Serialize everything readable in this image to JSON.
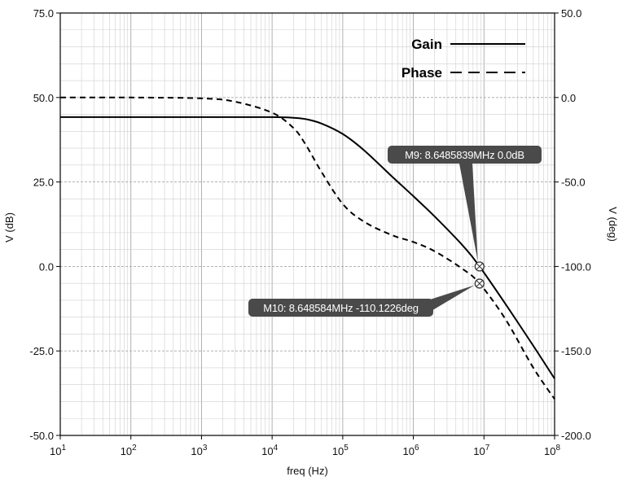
{
  "chart_data": {
    "type": "line",
    "xlabel": "freq (Hz)",
    "ylabel_left": "V (dB)",
    "ylabel_right": "V (deg)",
    "xscale": "log",
    "xlim": [
      10,
      100000000
    ],
    "ylim_left": [
      -50,
      75
    ],
    "ylim_right": [
      -200,
      50
    ],
    "x_ticks": [
      {
        "mant": "10",
        "exp": "1",
        "value": 10
      },
      {
        "mant": "10",
        "exp": "2",
        "value": 100
      },
      {
        "mant": "10",
        "exp": "3",
        "value": 1000
      },
      {
        "mant": "10",
        "exp": "4",
        "value": 10000
      },
      {
        "mant": "10",
        "exp": "5",
        "value": 100000
      },
      {
        "mant": "10",
        "exp": "6",
        "value": 1000000
      },
      {
        "mant": "10",
        "exp": "7",
        "value": 10000000
      },
      {
        "mant": "10",
        "exp": "8",
        "value": 100000000
      }
    ],
    "y_left_ticks": [
      {
        "label": "75.0",
        "value": 75
      },
      {
        "label": "50.0",
        "value": 50
      },
      {
        "label": "25.0",
        "value": 25
      },
      {
        "label": "0.0",
        "value": 0
      },
      {
        "label": "-25.0",
        "value": -25
      },
      {
        "label": "-50.0",
        "value": -50
      }
    ],
    "y_right_ticks": [
      {
        "label": "50.0",
        "value": 50
      },
      {
        "label": "0.0",
        "value": 0
      },
      {
        "label": "-50.0",
        "value": -50
      },
      {
        "label": "-100.0",
        "value": -100
      },
      {
        "label": "-150.0",
        "value": -150
      },
      {
        "label": "-200.0",
        "value": -200
      }
    ],
    "grid": true,
    "legend_position": "top-right",
    "series": [
      {
        "name": "Gain",
        "axis": "left",
        "style": "solid",
        "x": [
          10,
          100,
          1000,
          10000,
          20000,
          30000,
          50000,
          100000,
          200000,
          500000,
          1000000,
          2000000,
          5000000,
          8648584,
          20000000,
          50000000,
          100000000
        ],
        "y": [
          44.2,
          44.2,
          44.2,
          44.2,
          44.0,
          43.6,
          42.3,
          39.2,
          34.4,
          26.6,
          20.8,
          14.8,
          6.2,
          0.0,
          -11.0,
          -23.5,
          -33.2
        ]
      },
      {
        "name": "Phase",
        "axis": "right",
        "style": "dashed",
        "x": [
          10,
          100,
          1000,
          3000,
          10000,
          20000,
          30000,
          50000,
          100000,
          200000,
          500000,
          1000000,
          2000000,
          5000000,
          8648584,
          20000000,
          50000000,
          100000000
        ],
        "y": [
          0.0,
          0.0,
          -0.5,
          -2.5,
          -9.0,
          -18.0,
          -28.0,
          -44.0,
          -63.0,
          -73.5,
          -81.5,
          -85.5,
          -91.0,
          -101.5,
          -110.1,
          -131.0,
          -160.0,
          -178.5
        ]
      }
    ],
    "markers": [
      {
        "label": "M9: 8.6485839MHz 0.0dB",
        "x": 8648584,
        "y": 0.0,
        "axis": "left"
      },
      {
        "label": "M10: 8.648584MHz -110.1226deg",
        "x": 8648584,
        "y": -110.1226,
        "axis": "right"
      }
    ]
  }
}
